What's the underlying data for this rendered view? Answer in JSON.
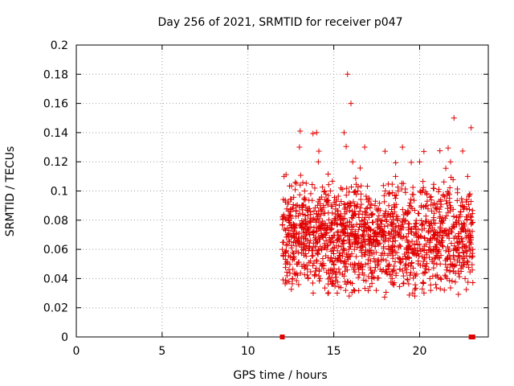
{
  "chart_data": {
    "type": "scatter",
    "title": "Day 256 of 2021, SRMTID for receiver p047",
    "xlabel": "GPS time / hours",
    "ylabel": "SRMTID / TECUs",
    "xlim": [
      0,
      24
    ],
    "ylim": [
      0,
      0.2
    ],
    "xticks": [
      0,
      5,
      10,
      15,
      20
    ],
    "xtick_labels": [
      "0",
      "5",
      "10",
      "15",
      "20"
    ],
    "yticks": [
      0,
      0.02,
      0.04,
      0.06,
      0.08,
      0.1,
      0.12,
      0.14,
      0.16,
      0.18,
      0.2
    ],
    "ytick_labels": [
      "0",
      "0.02",
      "0.04",
      "0.06",
      "0.08",
      "0.1",
      "0.12",
      "0.14",
      "0.16",
      "0.18",
      "0.2"
    ],
    "grid": true,
    "legend": "none",
    "marker": "+",
    "color": "#e00000",
    "zero_markers": {
      "description": "filled squares at y = 0",
      "x": [
        12.0,
        23.0,
        23.1
      ]
    },
    "series": [
      {
        "name": "SRMTID",
        "x": [
          12.0,
          12.1,
          12.2,
          12.4,
          12.5,
          12.6,
          12.8,
          12.9,
          13.0,
          13.2,
          13.3,
          13.5,
          13.6,
          13.8,
          13.9,
          14.0,
          14.1,
          14.2,
          14.4,
          14.6,
          14.8,
          15.0,
          15.2,
          15.4,
          15.6,
          15.8,
          16.0,
          16.1,
          16.2,
          16.4,
          16.6,
          16.8,
          17.0,
          17.2,
          17.4,
          17.6,
          17.8,
          18.0,
          18.2,
          18.4,
          18.6,
          18.8,
          19.0,
          19.2,
          19.4,
          19.6,
          19.8,
          20.0,
          20.2,
          20.4,
          20.6,
          20.8,
          21.0,
          21.2,
          21.4,
          21.6,
          21.8,
          22.0,
          22.2,
          22.4,
          22.6,
          22.8,
          23.0,
          23.1
        ],
        "y": [
          0.06,
          0.11,
          0.05,
          0.08,
          0.07,
          0.04,
          0.09,
          0.05,
          0.13,
          0.06,
          0.1,
          0.04,
          0.07,
          0.03,
          0.08,
          0.14,
          0.12,
          0.04,
          0.09,
          0.06,
          0.1,
          0.05,
          0.03,
          0.08,
          0.14,
          0.18,
          0.16,
          0.12,
          0.06,
          0.1,
          0.05,
          0.13,
          0.07,
          0.04,
          0.09,
          0.05,
          0.08,
          0.1,
          0.06,
          0.04,
          0.11,
          0.07,
          0.13,
          0.05,
          0.09,
          0.03,
          0.07,
          0.12,
          0.06,
          0.09,
          0.04,
          0.07,
          0.06,
          0.05,
          0.08,
          0.04,
          0.12,
          0.15,
          0.06,
          0.09,
          0.05,
          0.11,
          0.08,
          0.06
        ]
      }
    ]
  }
}
